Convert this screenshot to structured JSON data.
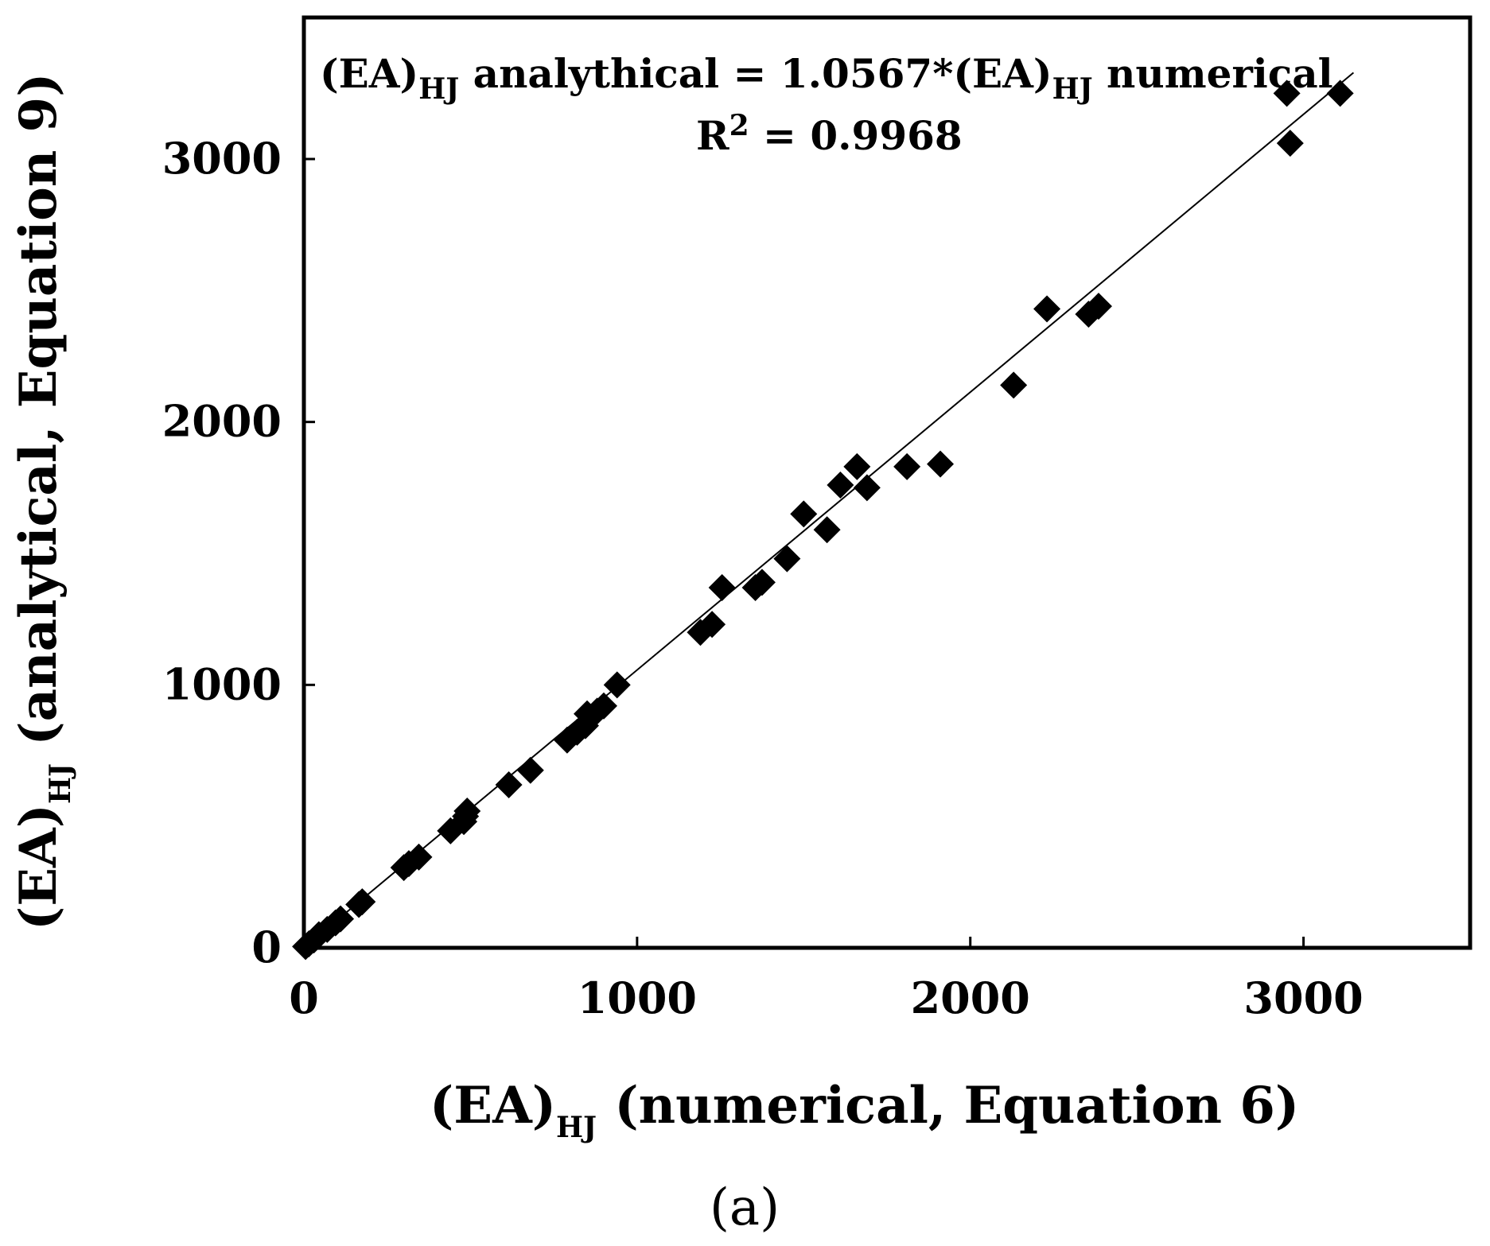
{
  "chart_data": {
    "type": "scatter",
    "xlabel": {
      "main": "(EA)",
      "sub": "HJ",
      "rest": " (numerical, Equation 6)"
    },
    "ylabel": {
      "main": "(EA)",
      "sub": "HJ",
      "rest": " (analytical, Equation 9)"
    },
    "xlim": [
      0,
      3500
    ],
    "ylim": [
      0,
      3000
    ],
    "xticks": [
      0,
      1000,
      2000,
      3000
    ],
    "yticks": [
      0,
      1000,
      2000,
      3000
    ],
    "xtick_labels": [
      "0",
      "1000",
      "2000",
      "3000"
    ],
    "ytick_labels": [
      "0",
      "1000",
      "2000",
      "3000"
    ],
    "trendline": {
      "slope": 1.0567,
      "intercept": 0
    },
    "equation": {
      "part1": "(EA)",
      "sub1": "HJ",
      "part2": " analythical = 1.0567*(EA)",
      "sub2": "HJ",
      "part3": " numerical",
      "r2_label": "R",
      "r2_sup": "2",
      "r2_value": " = 0.9968"
    },
    "panel_label": "(a)",
    "marker": "diamond",
    "color": "#000000",
    "points": [
      [
        5,
        5
      ],
      [
        15,
        15
      ],
      [
        30,
        30
      ],
      [
        45,
        50
      ],
      [
        70,
        70
      ],
      [
        95,
        95
      ],
      [
        110,
        110
      ],
      [
        165,
        165
      ],
      [
        175,
        175
      ],
      [
        300,
        305
      ],
      [
        315,
        320
      ],
      [
        345,
        345
      ],
      [
        440,
        445
      ],
      [
        480,
        480
      ],
      [
        485,
        500
      ],
      [
        490,
        520
      ],
      [
        615,
        620
      ],
      [
        680,
        675
      ],
      [
        790,
        790
      ],
      [
        820,
        820
      ],
      [
        845,
        845
      ],
      [
        850,
        890
      ],
      [
        880,
        900
      ],
      [
        900,
        920
      ],
      [
        940,
        1000
      ],
      [
        1190,
        1200
      ],
      [
        1225,
        1230
      ],
      [
        1255,
        1370
      ],
      [
        1355,
        1370
      ],
      [
        1375,
        1390
      ],
      [
        1450,
        1480
      ],
      [
        1500,
        1650
      ],
      [
        1570,
        1590
      ],
      [
        1610,
        1760
      ],
      [
        1660,
        1830
      ],
      [
        1690,
        1750
      ],
      [
        1810,
        1830
      ],
      [
        1910,
        1840
      ],
      [
        2130,
        2140
      ],
      [
        2230,
        2430
      ],
      [
        2355,
        2410
      ],
      [
        2385,
        2440
      ],
      [
        2950,
        3250
      ],
      [
        2960,
        3060
      ],
      [
        3110,
        3250
      ]
    ]
  }
}
